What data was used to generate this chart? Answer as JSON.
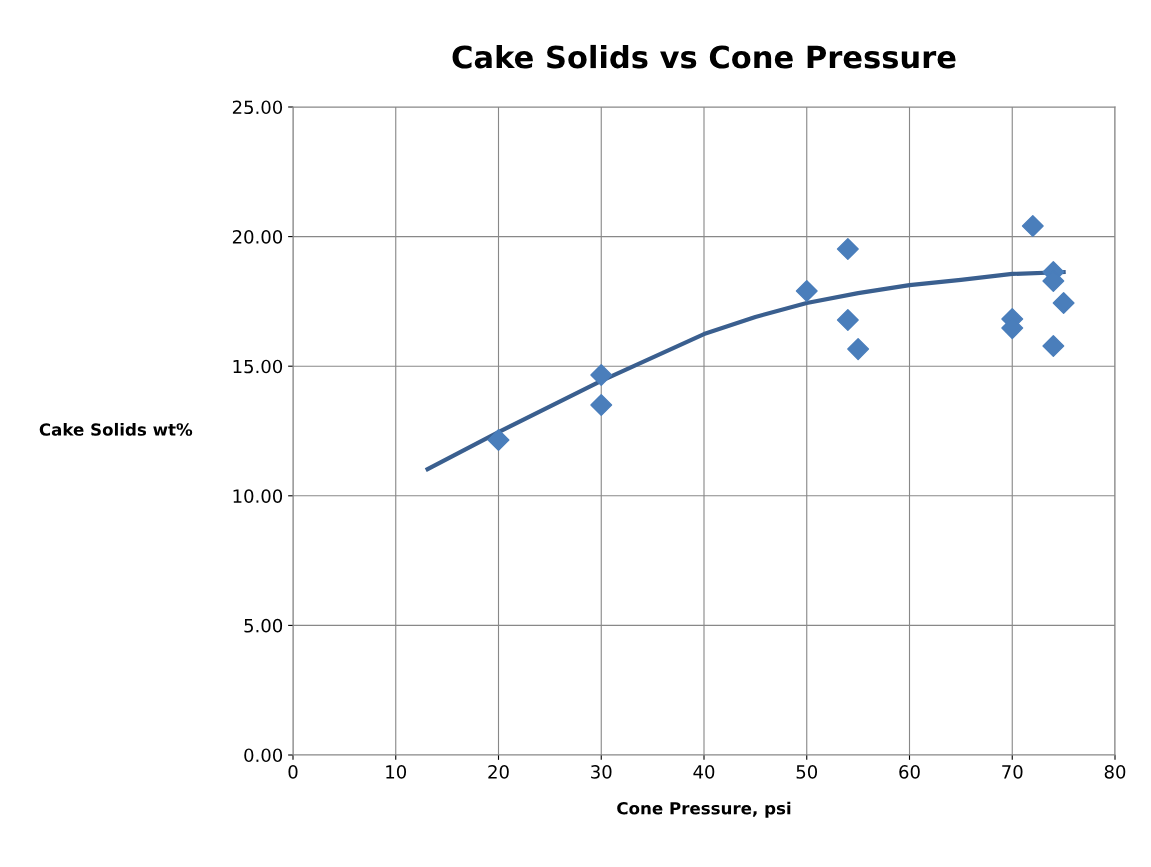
{
  "chart_data": {
    "type": "scatter",
    "title": "Cake Solids vs Cone Pressure",
    "xlabel": "Cone Pressure, psi",
    "ylabel": "Cake Solids wt%",
    "series": [
      {
        "color": "#4a7ebb",
        "marker": "diamond",
        "x": [
          20,
          30,
          30,
          50,
          54,
          54,
          55,
          70,
          70,
          72,
          74,
          74,
          74,
          75
        ],
        "values": [
          12.15,
          14.66,
          13.5,
          17.9,
          19.52,
          16.78,
          15.66,
          16.82,
          16.47,
          20.41,
          18.63,
          18.29,
          15.78,
          17.44
        ]
      },
      {
        "type": "line",
        "color": "#3a5f8f",
        "marker": "none",
        "line_style": "solid",
        "x": [
          13.1,
          20,
          30,
          40,
          45,
          50,
          55,
          60,
          65,
          70,
          75
        ],
        "values": [
          11.03,
          12.46,
          14.43,
          16.24,
          16.9,
          17.44,
          17.82,
          18.13,
          18.33,
          18.56,
          18.63
        ]
      }
    ],
    "xlim": [
      0,
      80
    ],
    "xticks": [
      0,
      10,
      20,
      30,
      40,
      50,
      60,
      70,
      80
    ],
    "ylim": [
      0,
      25
    ],
    "yticks": [
      {
        "value": 0,
        "label": "0.00"
      },
      {
        "value": 5,
        "label": "5.00"
      },
      {
        "value": 10,
        "label": "10.00"
      },
      {
        "value": 15,
        "label": "15.00"
      },
      {
        "value": 20,
        "label": "20.00"
      },
      {
        "value": 25,
        "label": "25.00"
      }
    ],
    "grid": true
  }
}
